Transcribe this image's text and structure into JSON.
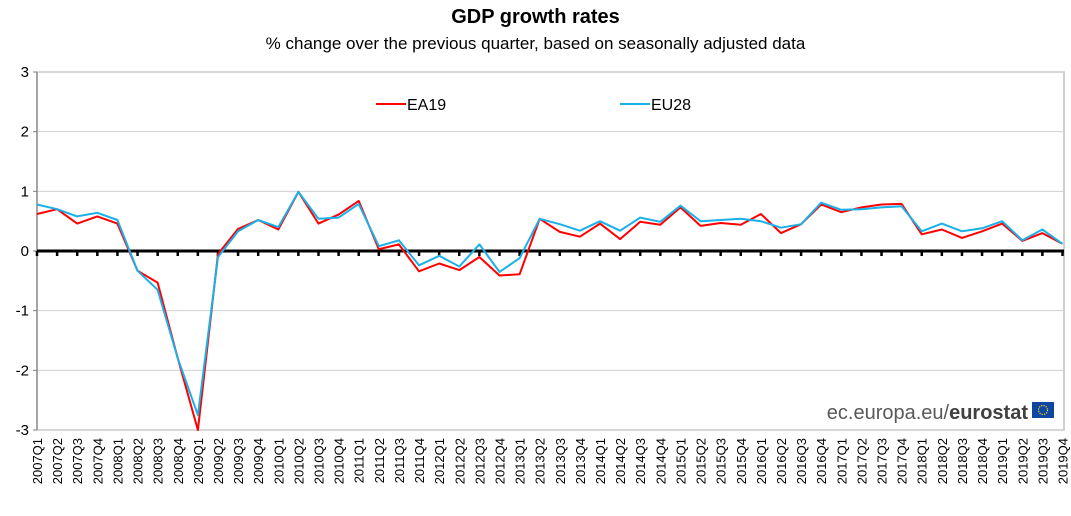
{
  "chart_data": {
    "type": "line",
    "title": "GDP growth rates",
    "subtitle": "% change over the previous quarter, based on seasonally adjusted data",
    "xlabel": "",
    "ylabel": "",
    "ylim": [
      -3,
      3
    ],
    "yticks": [
      3,
      2,
      1,
      0,
      -1,
      -2,
      -3
    ],
    "grid": true,
    "legend": "top-center",
    "source": {
      "normal": "ec.europa.eu/",
      "bold": "eurostat"
    },
    "x": [
      "2007Q1",
      "2007Q2",
      "2007Q3",
      "2007Q4",
      "2008Q1",
      "2008Q2",
      "2008Q3",
      "2008Q4",
      "2009Q1",
      "2009Q2",
      "2009Q3",
      "2009Q4",
      "2010Q1",
      "2010Q2",
      "2010Q3",
      "2010Q4",
      "2011Q1",
      "2011Q2",
      "2011Q3",
      "2011Q4",
      "2012Q1",
      "2012Q2",
      "2012Q3",
      "2012Q4",
      "2013Q1",
      "2013Q2",
      "2013Q3",
      "2013Q4",
      "2014Q1",
      "2014Q2",
      "2014Q3",
      "2014Q4",
      "2015Q1",
      "2015Q2",
      "2015Q3",
      "2015Q4",
      "2016Q1",
      "2016Q2",
      "2016Q3",
      "2016Q4",
      "2017Q1",
      "2017Q2",
      "2017Q3",
      "2017Q4",
      "2018Q1",
      "2018Q2",
      "2018Q3",
      "2018Q4",
      "2019Q1",
      "2019Q2",
      "2019Q3",
      "2019Q4"
    ],
    "series": [
      {
        "name": "EA19",
        "color": "#ff0000",
        "values": [
          0.62,
          0.7,
          0.46,
          0.58,
          0.46,
          -0.33,
          -0.53,
          -1.8,
          -3.0,
          -0.05,
          0.37,
          0.52,
          0.36,
          0.99,
          0.46,
          0.61,
          0.84,
          0.03,
          0.11,
          -0.34,
          -0.21,
          -0.32,
          -0.1,
          -0.41,
          -0.39,
          0.54,
          0.32,
          0.24,
          0.46,
          0.2,
          0.49,
          0.44,
          0.73,
          0.42,
          0.47,
          0.44,
          0.62,
          0.3,
          0.45,
          0.78,
          0.65,
          0.73,
          0.78,
          0.79,
          0.28,
          0.36,
          0.22,
          0.33,
          0.46,
          0.17,
          0.3,
          0.12
        ]
      },
      {
        "name": "EU28",
        "color": "#1ab0e8",
        "values": [
          0.78,
          0.7,
          0.58,
          0.64,
          0.52,
          -0.33,
          -0.65,
          -1.8,
          -2.75,
          -0.1,
          0.33,
          0.52,
          0.4,
          0.99,
          0.54,
          0.56,
          0.79,
          0.08,
          0.18,
          -0.24,
          -0.08,
          -0.26,
          0.11,
          -0.35,
          -0.12,
          0.54,
          0.45,
          0.34,
          0.5,
          0.34,
          0.56,
          0.49,
          0.76,
          0.5,
          0.52,
          0.54,
          0.5,
          0.39,
          0.45,
          0.81,
          0.69,
          0.7,
          0.73,
          0.75,
          0.33,
          0.46,
          0.33,
          0.38,
          0.5,
          0.18,
          0.36,
          0.12
        ]
      }
    ]
  }
}
